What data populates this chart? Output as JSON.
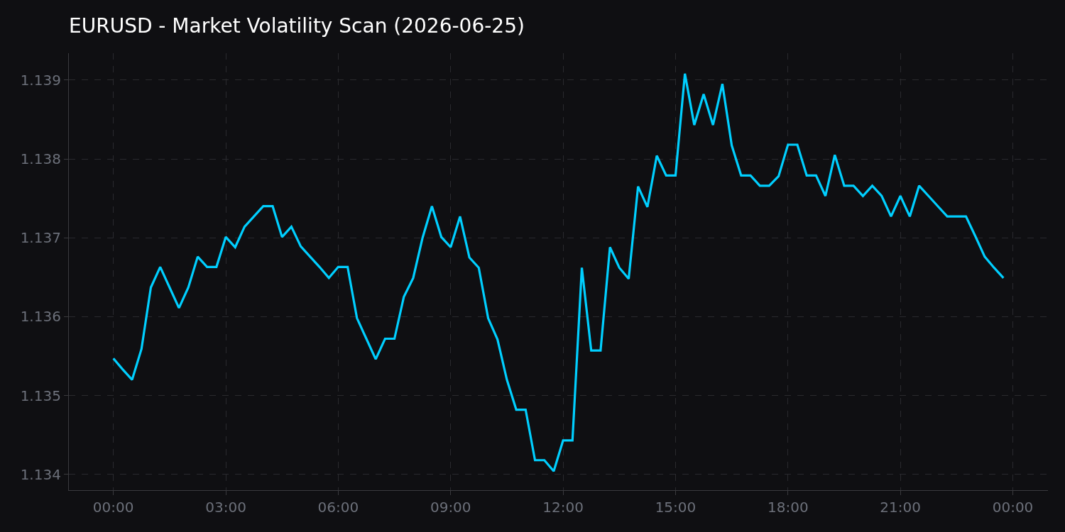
{
  "chart_data": {
    "type": "line",
    "title": "EURUSD - Market Volatility Scan (2026-06-25)",
    "x": [
      0,
      0.25,
      0.5,
      0.75,
      1,
      1.25,
      1.5,
      1.75,
      2,
      2.25,
      2.5,
      2.75,
      3,
      3.25,
      3.5,
      3.75,
      4,
      4.25,
      4.5,
      4.75,
      5,
      5.25,
      5.5,
      5.75,
      6,
      6.25,
      6.5,
      6.75,
      7,
      7.25,
      7.5,
      7.75,
      8,
      8.25,
      8.5,
      8.75,
      9,
      9.25,
      9.5,
      9.75,
      10,
      10.25,
      10.5,
      10.75,
      11,
      11.25,
      11.5,
      11.75,
      12,
      12.25,
      12.5,
      12.75,
      13,
      13.25,
      13.5,
      13.75,
      14,
      14.25,
      14.5,
      14.75,
      15,
      15.25,
      15.5,
      15.75,
      16,
      16.25,
      16.5,
      16.75,
      17,
      17.25,
      17.5,
      17.75,
      18,
      18.25,
      18.5,
      18.75,
      19,
      19.25,
      19.5,
      19.75,
      20,
      20.25,
      20.5,
      20.75,
      21,
      21.25,
      21.5,
      21.75,
      22,
      22.25,
      22.5,
      22.75,
      23,
      23.25,
      23.5,
      23.75
    ],
    "series": [
      {
        "color": "#00cfff",
        "values": [
          1.13547,
          1.13533,
          1.1352,
          1.13559,
          1.13637,
          1.13663,
          1.13637,
          1.13611,
          1.13637,
          1.13676,
          1.13663,
          1.13663,
          1.13701,
          1.13688,
          1.13714,
          1.13727,
          1.1374,
          1.1374,
          1.13701,
          1.13714,
          1.13689,
          1.13676,
          1.13663,
          1.13649,
          1.13663,
          1.13663,
          1.13598,
          1.13572,
          1.13546,
          1.13572,
          1.13572,
          1.13625,
          1.13649,
          1.137,
          1.1374,
          1.13701,
          1.13688,
          1.13727,
          1.13675,
          1.13662,
          1.13598,
          1.13571,
          1.1352,
          1.13482,
          1.13482,
          1.13418,
          1.13418,
          1.13404,
          1.13443,
          1.13443,
          1.13662,
          1.13557,
          1.13557,
          1.13688,
          1.13662,
          1.13648,
          1.13765,
          1.13739,
          1.13804,
          1.13779,
          1.13779,
          1.13908,
          1.13843,
          1.13882,
          1.13843,
          1.13895,
          1.13817,
          1.13779,
          1.13779,
          1.13766,
          1.13766,
          1.13778,
          1.13818,
          1.13818,
          1.13779,
          1.13779,
          1.13753,
          1.13805,
          1.13766,
          1.13766,
          1.13753,
          1.13766,
          1.13753,
          1.13727,
          1.13753,
          1.13727,
          1.13766,
          1.13753,
          1.1374,
          1.13727,
          1.13727,
          1.13727,
          1.13702,
          1.13676,
          1.13662,
          1.13649
        ]
      }
    ],
    "xlim": [
      -1.1875,
      24.9375
    ],
    "xticks": [
      {
        "value": 0,
        "label": "00:00"
      },
      {
        "value": 3,
        "label": "03:00"
      },
      {
        "value": 6,
        "label": "06:00"
      },
      {
        "value": 9,
        "label": "09:00"
      },
      {
        "value": 12,
        "label": "12:00"
      },
      {
        "value": 15,
        "label": "15:00"
      },
      {
        "value": 18,
        "label": "18:00"
      },
      {
        "value": 21,
        "label": "21:00"
      },
      {
        "value": 24,
        "label": "00:00"
      }
    ],
    "ylim": [
      1.1338,
      1.13934
    ],
    "yticks": [
      1.134,
      1.135,
      1.136,
      1.137,
      1.138,
      1.139
    ],
    "grid": true,
    "line_style": "solid"
  }
}
